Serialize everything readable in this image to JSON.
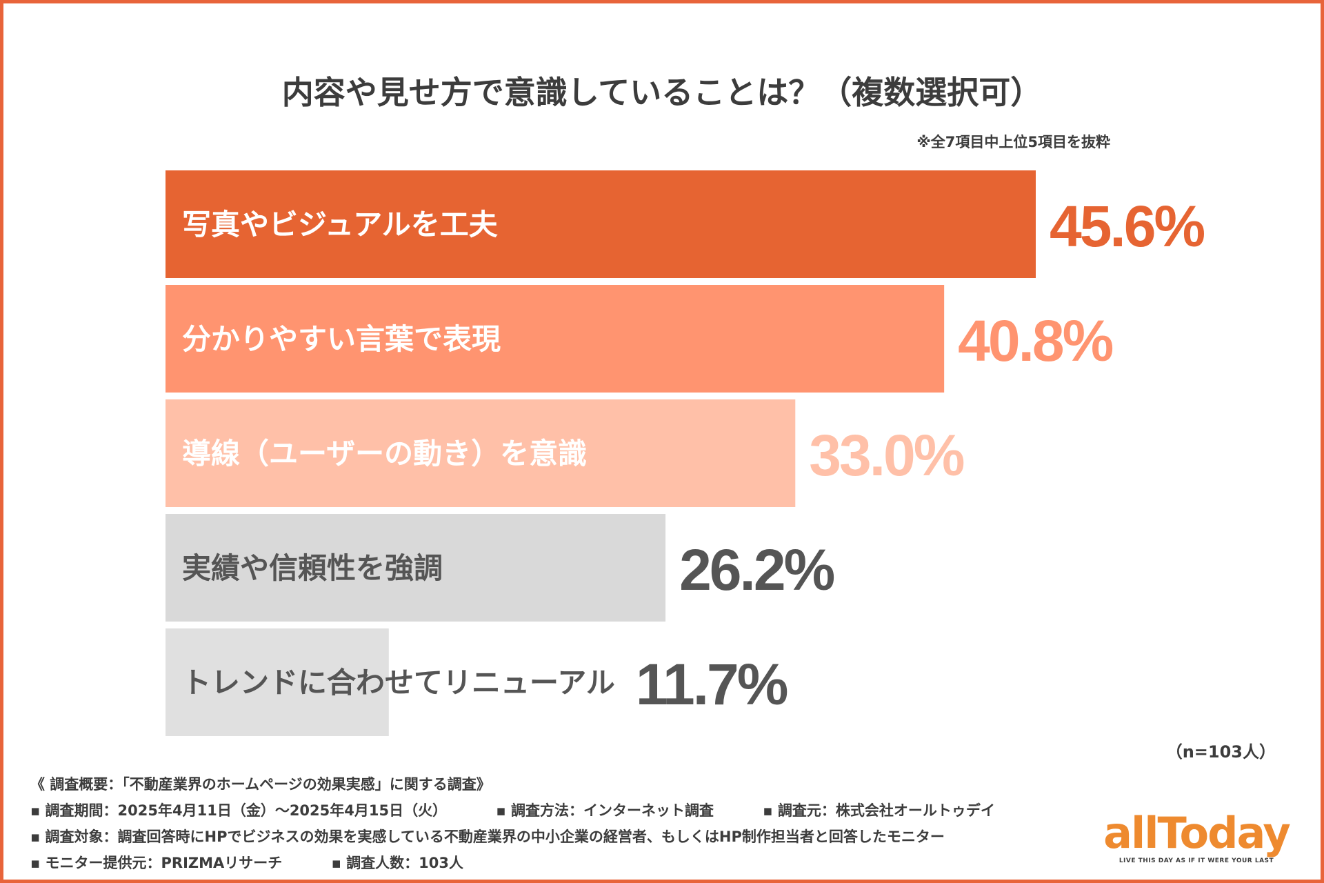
{
  "chart_data": {
    "type": "bar",
    "orientation": "horizontal",
    "title": "内容や見せ方で意識していることは？（複数選択可）",
    "note": "※全7項目中上位5項目を抜粋",
    "categories": [
      "写真やビジュアルを工夫",
      "分かりやすい言葉で表現",
      "導線（ユーザーの動き）を意識",
      "実績や信頼性を強調",
      "トレンドに合わせてリニューアル"
    ],
    "values": [
      45.6,
      40.8,
      33.0,
      26.2,
      11.7
    ],
    "value_labels": [
      "45.6%",
      "40.8%",
      "33.0%",
      "26.2%",
      "11.7%"
    ],
    "unit": "%",
    "xlim": [
      0,
      50
    ],
    "bar_colors": [
      "#e66432",
      "#ff9470",
      "#ffc0a8",
      "#d9d9d9",
      "#e0e0e0"
    ],
    "label_colors": [
      "#e66432",
      "#ff9470",
      "#ffc0a8",
      "#555555",
      "#555555"
    ],
    "category_text_colors": [
      "#ffffff",
      "#ffffff",
      "#ffffff",
      "#555555",
      "#555555"
    ],
    "sample_size": "（n=103人）"
  },
  "footer": {
    "survey_title": "《 調査概要：「不動産業界のホームページの効果実感」に関する調査》",
    "period": "▪ 調査期間：2025年4月11日（金）〜2025年4月15日（火）",
    "method": "▪ 調査方法：インターネット調査",
    "organizer": "▪ 調査元：株式会社オールトゥデイ",
    "target": "▪ 調査対象：調査回答時にHPでビジネスの効果を実感している不動産業界の中小企業の経営者、もしくはHP制作担当者と回答したモニター",
    "provider": "▪ モニター提供元：PRIZMAリサーチ",
    "respondents": "▪ 調査人数：103人"
  },
  "logo": {
    "name": "allToday",
    "tagline": "LIVE THIS DAY AS IF IT WERE YOUR LAST",
    "color": "#ee8a2f"
  },
  "frame_color": "#e8643a"
}
